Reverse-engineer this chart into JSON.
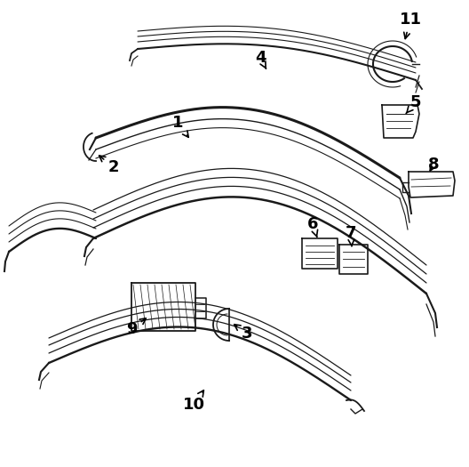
{
  "bg_color": "#ffffff",
  "line_color": "#1a1a1a",
  "label_color": "#000000",
  "arrow_label_fontsize": 13,
  "figsize": [
    5.28,
    5.25
  ],
  "dpi": 100
}
